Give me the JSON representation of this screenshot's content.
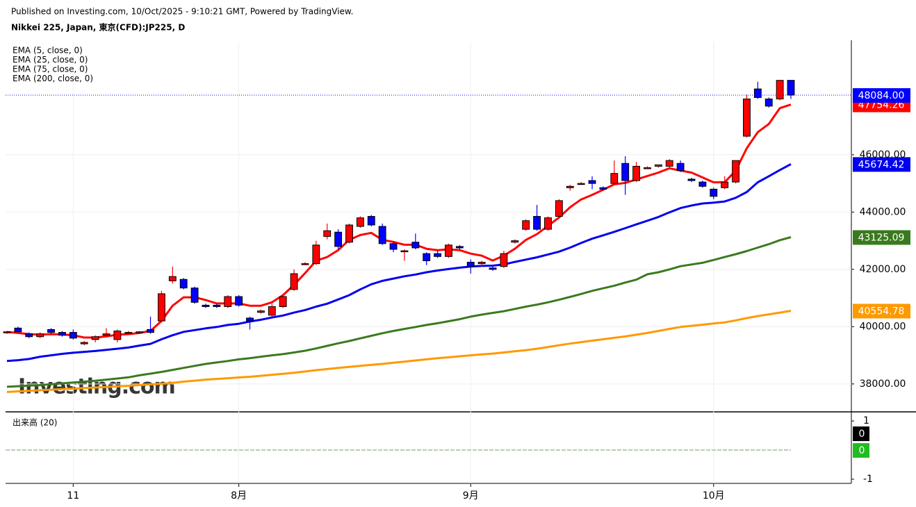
{
  "header": {
    "published": "Published on Investing.com, 10/Oct/2025 - 9:10:21 GMT, Powered by TradingView.",
    "symbol": "Nikkei 225, Japan, 東京(CFD):JP225, D"
  },
  "watermark": "Investing.com",
  "chart_data": {
    "type": "candlestick",
    "up_color": "#ff0000",
    "down_color": "#0000ff",
    "grid": true,
    "ylim": [
      37050,
      49950
    ],
    "yticks": [
      {
        "value": 38000,
        "label": "38000.00"
      },
      {
        "value": 40000,
        "label": "40000.00"
      },
      {
        "value": 42000,
        "label": "42000.00"
      },
      {
        "value": 44000,
        "label": "44000.00"
      },
      {
        "value": 46000,
        "label": "46000.00"
      }
    ],
    "categories": [
      null,
      null,
      null,
      null,
      null,
      null,
      "11",
      null,
      null,
      null,
      null,
      null,
      null,
      null,
      null,
      null,
      null,
      null,
      null,
      null,
      null,
      "8月",
      null,
      null,
      null,
      null,
      null,
      null,
      null,
      null,
      null,
      null,
      null,
      null,
      null,
      null,
      null,
      null,
      null,
      null,
      null,
      null,
      "9月",
      null,
      null,
      null,
      null,
      null,
      null,
      null,
      null,
      null,
      null,
      null,
      null,
      null,
      null,
      null,
      null,
      null,
      null,
      null,
      null,
      null,
      "10月",
      null,
      null,
      null,
      null,
      null,
      null,
      null
    ],
    "ohlc": [
      [
        39800,
        39850,
        39750,
        39820
      ],
      [
        39950,
        40000,
        39800,
        39820
      ],
      [
        39750,
        39800,
        39600,
        39650
      ],
      [
        39650,
        39800,
        39600,
        39750
      ],
      [
        39900,
        39950,
        39750,
        39800
      ],
      [
        39800,
        39850,
        39650,
        39700
      ],
      [
        39800,
        39900,
        39550,
        39600
      ],
      [
        39400,
        39500,
        39350,
        39450
      ],
      [
        39550,
        39700,
        39450,
        39650
      ],
      [
        39700,
        39950,
        39650,
        39750
      ],
      [
        39550,
        39900,
        39450,
        39850
      ],
      [
        39800,
        39850,
        39750,
        39800
      ],
      [
        39800,
        39850,
        39750,
        39820
      ],
      [
        39900,
        40350,
        39750,
        39800
      ],
      [
        40200,
        41250,
        40150,
        41150
      ],
      [
        41600,
        42100,
        41500,
        41750
      ],
      [
        41650,
        41700,
        41300,
        41350
      ],
      [
        41350,
        41400,
        40800,
        40850
      ],
      [
        40750,
        40800,
        40650,
        40700
      ],
      [
        40750,
        40800,
        40650,
        40700
      ],
      [
        40700,
        41100,
        40650,
        41050
      ],
      [
        41050,
        41100,
        40700,
        40750
      ],
      [
        40300,
        40350,
        39900,
        40200
      ],
      [
        40500,
        40600,
        40450,
        40550
      ],
      [
        40400,
        40800,
        40350,
        40700
      ],
      [
        40700,
        41150,
        40650,
        41050
      ],
      [
        41300,
        42000,
        41250,
        41850
      ],
      [
        42200,
        42250,
        42150,
        42200
      ],
      [
        42200,
        43000,
        42150,
        42850
      ],
      [
        43150,
        43600,
        43050,
        43350
      ],
      [
        43300,
        43400,
        42700,
        42800
      ],
      [
        42950,
        43600,
        42900,
        43550
      ],
      [
        43500,
        43850,
        43450,
        43800
      ],
      [
        43850,
        43900,
        43500,
        43550
      ],
      [
        43500,
        43600,
        42850,
        42900
      ],
      [
        42900,
        42950,
        42600,
        42700
      ],
      [
        42650,
        42700,
        42300,
        42650
      ],
      [
        42950,
        43250,
        42700,
        42750
      ],
      [
        42550,
        42600,
        42150,
        42300
      ],
      [
        42550,
        42650,
        42400,
        42450
      ],
      [
        42450,
        42900,
        42400,
        42850
      ],
      [
        42800,
        42850,
        42700,
        42750
      ],
      [
        42250,
        42350,
        41850,
        42100
      ],
      [
        42200,
        42300,
        42100,
        42250
      ],
      [
        42050,
        42150,
        41950,
        42000
      ],
      [
        42100,
        42650,
        42050,
        42550
      ],
      [
        42950,
        43050,
        42900,
        43000
      ],
      [
        43400,
        43750,
        43350,
        43700
      ],
      [
        43850,
        44250,
        43350,
        43400
      ],
      [
        43400,
        43850,
        43350,
        43800
      ],
      [
        43850,
        44450,
        43850,
        44400
      ],
      [
        44850,
        44950,
        44750,
        44900
      ],
      [
        45000,
        45050,
        44950,
        45000
      ],
      [
        45100,
        45250,
        44800,
        45000
      ],
      [
        44850,
        44900,
        44750,
        44800
      ],
      [
        45000,
        45800,
        44950,
        45350
      ],
      [
        45700,
        45950,
        44600,
        45100
      ],
      [
        45100,
        45750,
        45050,
        45600
      ],
      [
        45550,
        45600,
        45500,
        45550
      ],
      [
        45600,
        45650,
        45550,
        45650
      ],
      [
        45600,
        45850,
        45550,
        45800
      ],
      [
        45700,
        45800,
        45400,
        45450
      ],
      [
        45150,
        45200,
        45050,
        45100
      ],
      [
        45050,
        45100,
        44850,
        44900
      ],
      [
        44800,
        44850,
        44450,
        44550
      ],
      [
        44850,
        45250,
        44800,
        45050
      ],
      [
        45050,
        45800,
        45000,
        45800
      ],
      [
        46650,
        48100,
        46600,
        47950
      ],
      [
        48300,
        48550,
        47950,
        48000
      ],
      [
        47950,
        48000,
        47650,
        47700
      ],
      [
        47950,
        48600,
        47900,
        48600
      ],
      [
        48600,
        48600,
        47950,
        48084
      ]
    ],
    "last_label": "48084.00",
    "last_color": "#0000ff",
    "series": [
      {
        "name": "EMA (5, close, 0)",
        "color": "#ff0000",
        "last_label": "47754.26",
        "values": [
          39815,
          39780,
          39740,
          39720,
          39740,
          39730,
          39700,
          39620,
          39620,
          39660,
          39720,
          39740,
          39780,
          39850,
          40200,
          40730,
          41025,
          41025,
          40930,
          40810,
          40810,
          40810,
          40730,
          40730,
          40850,
          41100,
          41460,
          41870,
          42300,
          42430,
          42670,
          43030,
          43200,
          43275,
          43030,
          42960,
          42860,
          42860,
          42720,
          42670,
          42700,
          42670,
          42550,
          42480,
          42310,
          42480,
          42720,
          43030,
          43230,
          43520,
          43810,
          44170,
          44440,
          44600,
          44780,
          44970,
          45020,
          45140,
          45260,
          45380,
          45530,
          45450,
          45380,
          45210,
          45040,
          45040,
          45450,
          46230,
          46790,
          47075,
          47630,
          47754.26
        ]
      },
      {
        "name": "EMA (25, close, 0)",
        "color": "#0000ee",
        "last_label": "45674.42",
        "values": [
          38800,
          38830,
          38870,
          38950,
          39000,
          39050,
          39090,
          39120,
          39150,
          39190,
          39230,
          39270,
          39340,
          39400,
          39560,
          39700,
          39820,
          39880,
          39940,
          39990,
          40060,
          40100,
          40180,
          40240,
          40320,
          40390,
          40490,
          40580,
          40700,
          40800,
          40950,
          41100,
          41300,
          41480,
          41600,
          41680,
          41760,
          41820,
          41900,
          41960,
          42010,
          42060,
          42100,
          42120,
          42130,
          42170,
          42260,
          42340,
          42420,
          42520,
          42620,
          42760,
          42920,
          43070,
          43190,
          43310,
          43440,
          43570,
          43700,
          43830,
          43990,
          44140,
          44230,
          44300,
          44330,
          44370,
          44500,
          44700,
          45040,
          45250,
          45470,
          45674.42
        ]
      },
      {
        "name": "EMA (75, close, 0)",
        "color": "#3a7a1e",
        "last_label": "43125.09",
        "values": [
          37900,
          37920,
          37940,
          37960,
          37990,
          38020,
          38050,
          38080,
          38110,
          38150,
          38190,
          38230,
          38300,
          38360,
          38420,
          38490,
          38560,
          38630,
          38700,
          38750,
          38800,
          38860,
          38900,
          38950,
          39000,
          39040,
          39100,
          39160,
          39240,
          39330,
          39420,
          39500,
          39590,
          39680,
          39770,
          39850,
          39920,
          39990,
          40060,
          40120,
          40190,
          40260,
          40350,
          40420,
          40480,
          40540,
          40620,
          40700,
          40770,
          40850,
          40940,
          41040,
          41140,
          41250,
          41340,
          41430,
          41540,
          41640,
          41830,
          41900,
          42000,
          42110,
          42170,
          42230,
          42330,
          42430,
          42530,
          42640,
          42760,
          42880,
          43020,
          43125.09
        ]
      },
      {
        "name": "EMA (200, close, 0)",
        "color": "#ff9900",
        "last_label": "40554.78",
        "values": [
          37720,
          37740,
          37760,
          37780,
          37800,
          37820,
          37835,
          37855,
          37875,
          37895,
          37915,
          37935,
          37960,
          37985,
          38005,
          38040,
          38080,
          38115,
          38150,
          38175,
          38200,
          38225,
          38250,
          38285,
          38320,
          38355,
          38390,
          38435,
          38480,
          38520,
          38560,
          38595,
          38630,
          38665,
          38700,
          38740,
          38780,
          38820,
          38860,
          38900,
          38930,
          38965,
          39000,
          39030,
          39060,
          39100,
          39140,
          39180,
          39230,
          39290,
          39350,
          39410,
          39460,
          39510,
          39560,
          39610,
          39660,
          39720,
          39780,
          39850,
          39920,
          39990,
          40030,
          40070,
          40110,
          40150,
          40220,
          40300,
          40370,
          40430,
          40490,
          40554.78
        ]
      }
    ],
    "volume": {
      "title": "出来高 (20)",
      "ylim": [
        -1.12,
        1.29
      ],
      "yticks": [
        1,
        -1
      ],
      "series": [
        {
          "color": "#000000",
          "value": 0
        },
        {
          "color": "#22bb22",
          "value": 0
        }
      ]
    }
  }
}
